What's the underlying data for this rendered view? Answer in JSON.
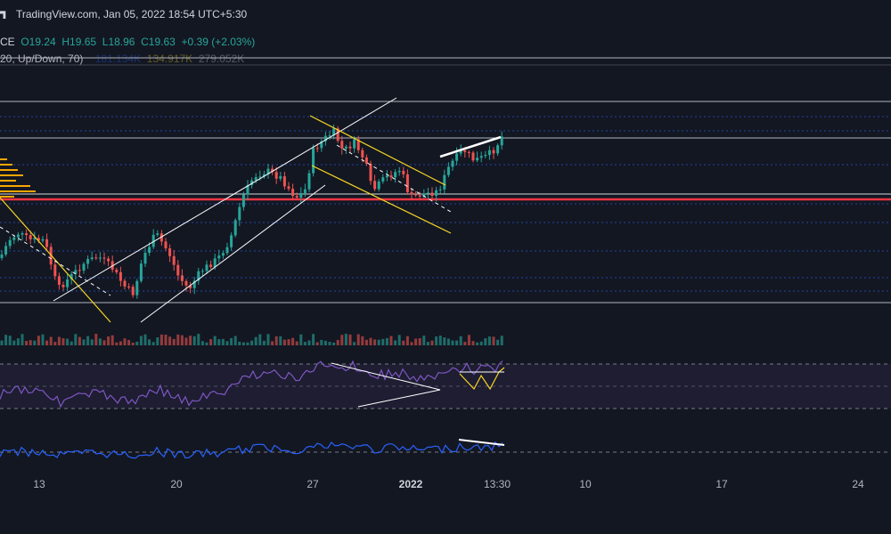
{
  "header": {
    "source": "TradingView.com, Jan 05, 2022 18:54 UTC+5:30",
    "symbol_fragment": "CE",
    "open": "O19.24",
    "high": "H19.65",
    "low": "L18.96",
    "close": "C19.63",
    "change": "+0.39 (+2.03%)",
    "indicator": "20, Up/Down, 70)",
    "indicator_values": [
      "181.134K",
      "134.917K",
      "279.052K"
    ]
  },
  "chart_data": {
    "type": "candlestick",
    "x_ticks": [
      "13",
      "20",
      "27",
      "2022",
      "13:30",
      "10",
      "17",
      "24"
    ],
    "bold_tick": "2022",
    "colors": {
      "up": "#26a69a",
      "down": "#ef5350",
      "background": "#131722",
      "rsi": "#7e57c2",
      "momentum": "#2962ff",
      "support": "#f23645",
      "channel": "#f7d622"
    },
    "grid": false
  }
}
